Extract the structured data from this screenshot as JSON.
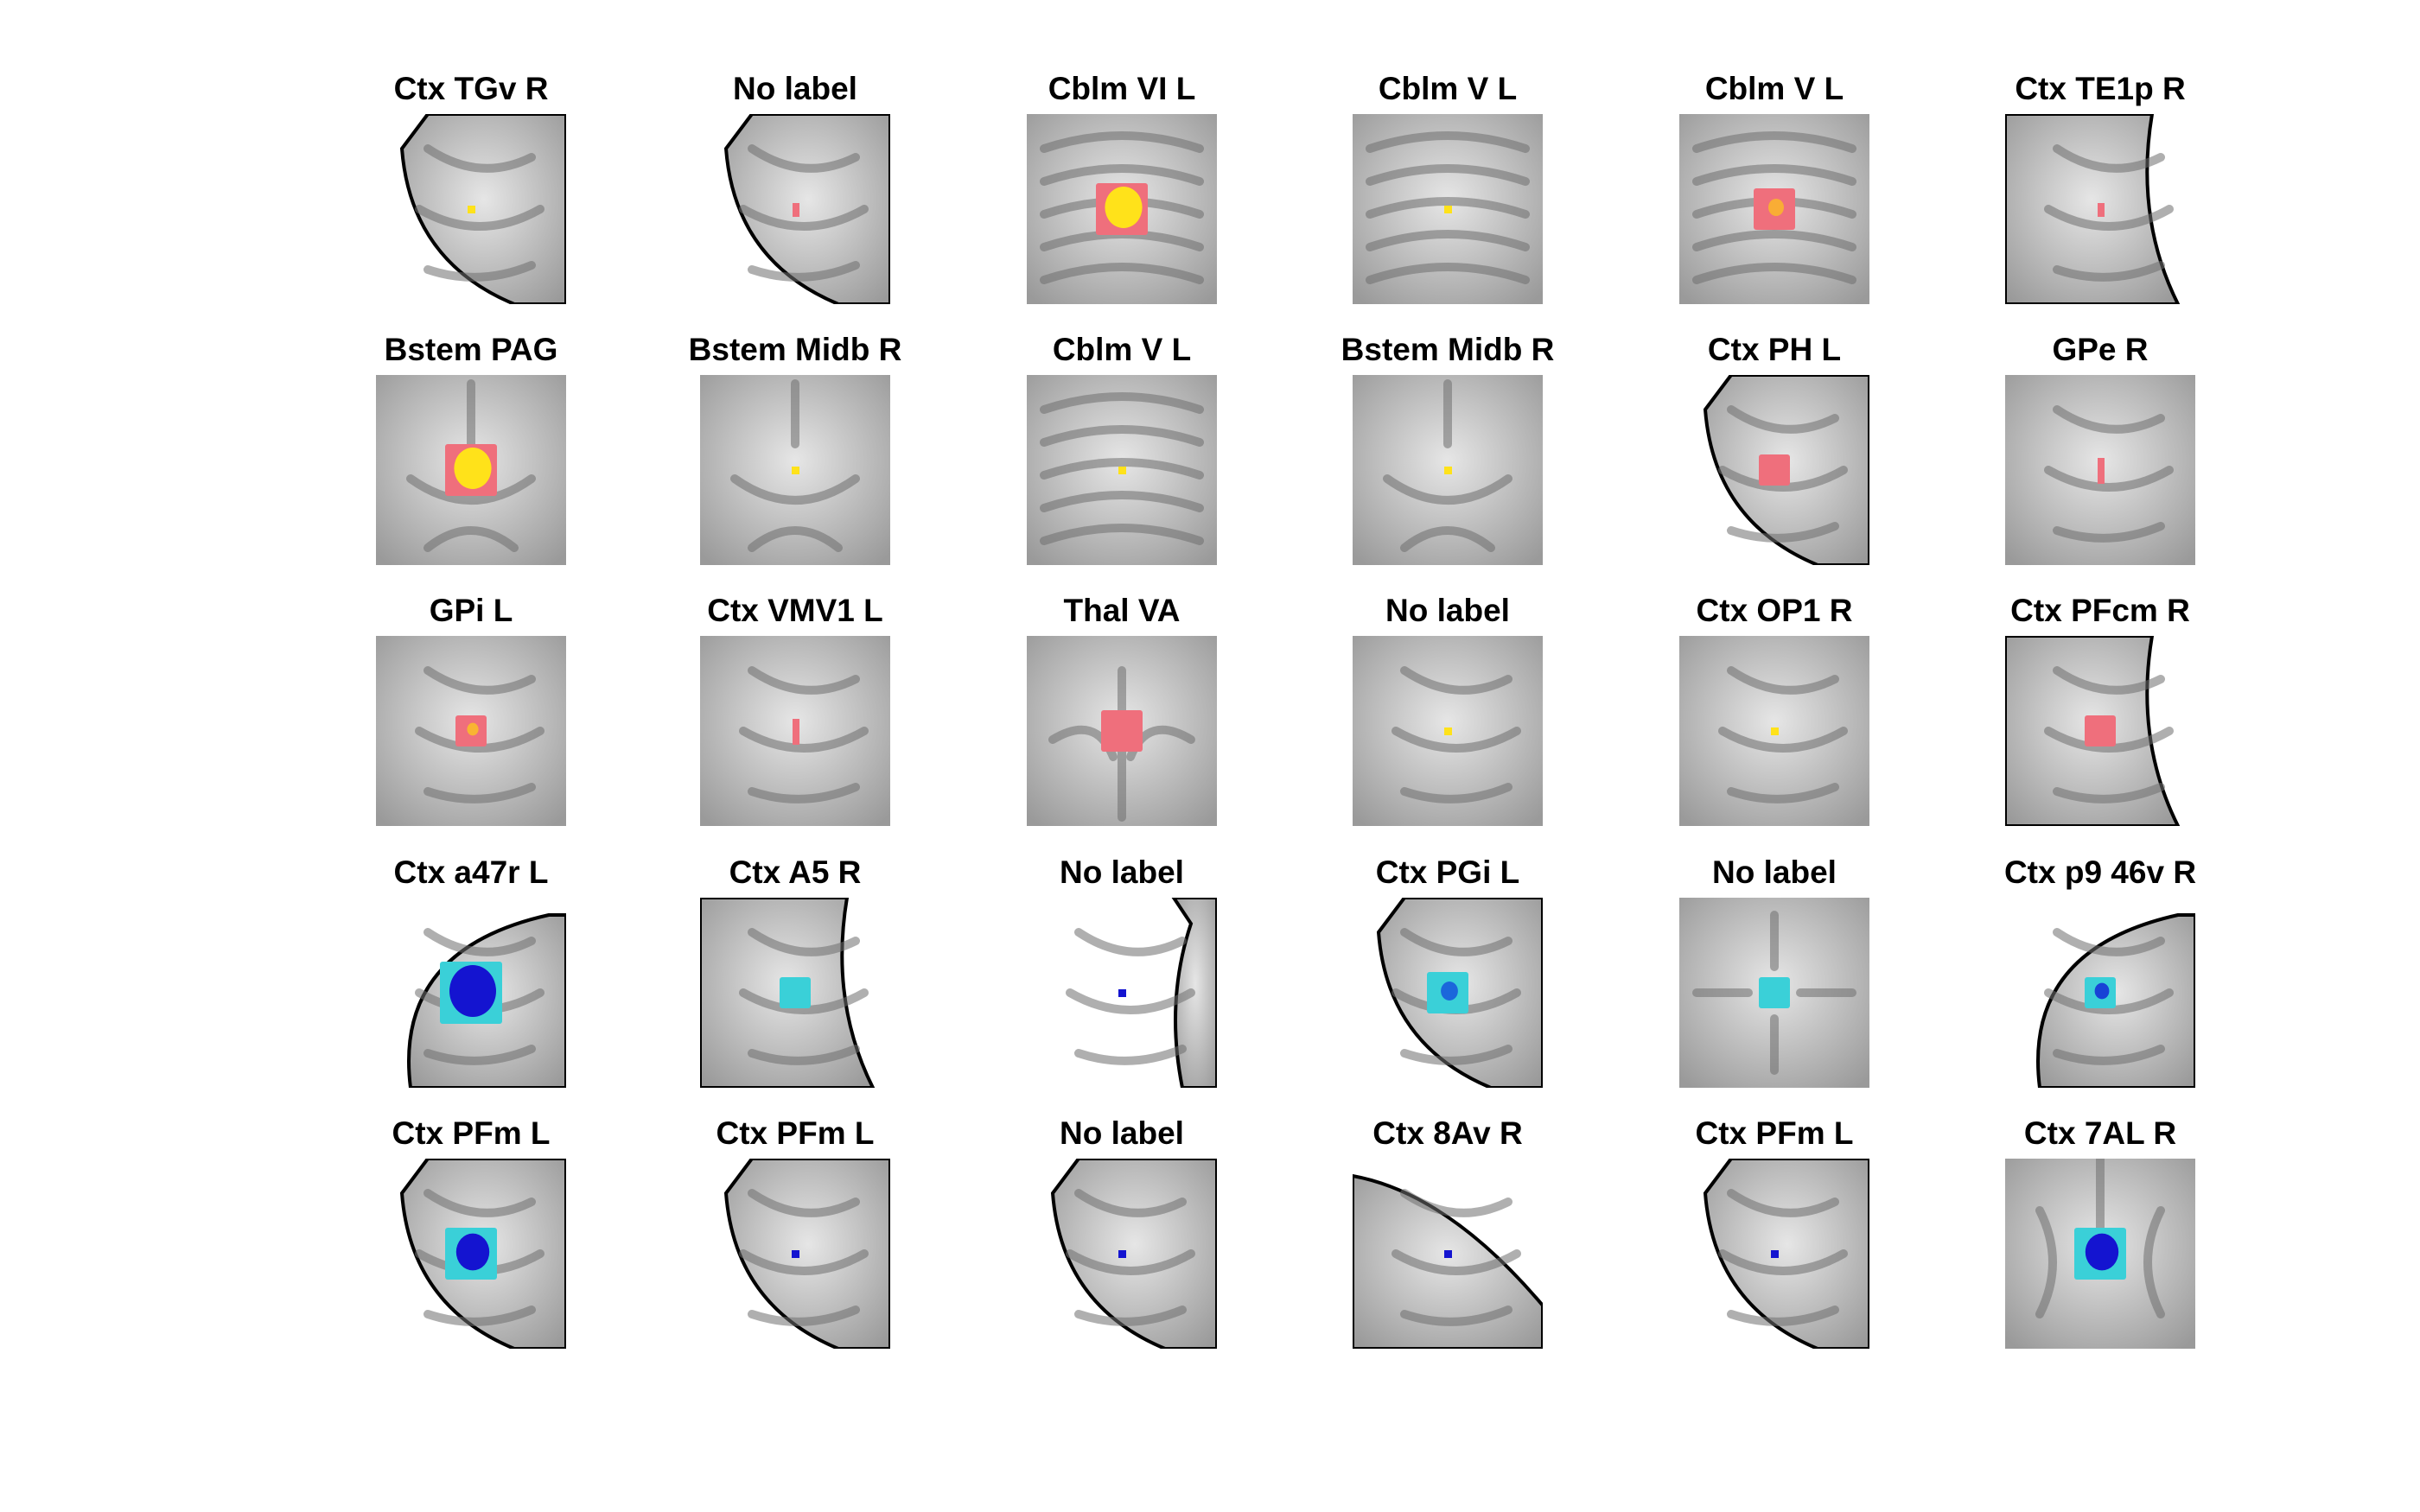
{
  "figure": {
    "rows": 5,
    "cols": 6,
    "colormaps": {
      "positive": [
        "#ef6f7c",
        "#f7a03c",
        "#ffe21a"
      ],
      "negative": [
        "#3ad0d8",
        "#1e8ae0",
        "#1414d0"
      ]
    },
    "panels": [
      {
        "label": "Ctx TGv R",
        "background": "edge-bottom-left",
        "blob": {
          "sign": "pos",
          "size": 1,
          "shape": "dot",
          "intensity": 1.0
        }
      },
      {
        "label": "No label",
        "background": "edge-bottom-left",
        "blob": {
          "sign": "pos",
          "size": 1,
          "shape": "bar",
          "intensity": 0.0
        }
      },
      {
        "label": "Cblm VI L",
        "background": "cerebellum",
        "blob": {
          "sign": "pos",
          "size": 4,
          "shape": "blob",
          "intensity": 1.0
        }
      },
      {
        "label": "Cblm V L",
        "background": "cerebellum",
        "blob": {
          "sign": "pos",
          "size": 1,
          "shape": "dot",
          "intensity": 1.0
        }
      },
      {
        "label": "Cblm V L",
        "background": "cerebellum",
        "blob": {
          "sign": "pos",
          "size": 3,
          "shape": "blob",
          "intensity": 0.2
        }
      },
      {
        "label": "Ctx TE1p R",
        "background": "edge-right",
        "blob": {
          "sign": "pos",
          "size": 1,
          "shape": "bar",
          "intensity": 0.0
        }
      },
      {
        "label": "Bstem PAG",
        "background": "brainstem",
        "blob": {
          "sign": "pos",
          "size": 4,
          "shape": "blob",
          "intensity": 1.0
        }
      },
      {
        "label": "Bstem Midb R",
        "background": "brainstem",
        "blob": {
          "sign": "pos",
          "size": 1,
          "shape": "dot",
          "intensity": 1.0
        }
      },
      {
        "label": "Cblm V L",
        "background": "cerebellum",
        "blob": {
          "sign": "pos",
          "size": 1,
          "shape": "dot",
          "intensity": 1.0
        }
      },
      {
        "label": "Bstem Midb R",
        "background": "brainstem",
        "blob": {
          "sign": "pos",
          "size": 1,
          "shape": "dot",
          "intensity": 1.0
        }
      },
      {
        "label": "Ctx PH L",
        "background": "edge-bottom-left",
        "blob": {
          "sign": "pos",
          "size": 2,
          "shape": "blob",
          "intensity": 0.0
        }
      },
      {
        "label": "GPe R",
        "background": "interior",
        "blob": {
          "sign": "pos",
          "size": 1,
          "shape": "vbar",
          "intensity": 0.0
        }
      },
      {
        "label": "GPi L",
        "background": "interior",
        "blob": {
          "sign": "pos",
          "size": 2,
          "shape": "blob",
          "intensity": 0.3
        }
      },
      {
        "label": "Ctx VMV1 L",
        "background": "interior",
        "blob": {
          "sign": "pos",
          "size": 1,
          "shape": "vbar",
          "intensity": 0.0
        }
      },
      {
        "label": "Thal VA",
        "background": "thalamus",
        "blob": {
          "sign": "pos",
          "size": 3,
          "shape": "blob",
          "intensity": 0.0
        }
      },
      {
        "label": "No label",
        "background": "gyri",
        "blob": {
          "sign": "pos",
          "size": 1,
          "shape": "dot",
          "intensity": 1.0
        }
      },
      {
        "label": "Ctx OP1 R",
        "background": "gyri",
        "blob": {
          "sign": "pos",
          "size": 1,
          "shape": "dot",
          "intensity": 1.0
        }
      },
      {
        "label": "Ctx PFcm R",
        "background": "edge-right",
        "blob": {
          "sign": "pos",
          "size": 2,
          "shape": "blob",
          "intensity": 0.0
        }
      },
      {
        "label": "Ctx a47r L",
        "background": "edge-top-left-round",
        "blob": {
          "sign": "neg",
          "size": 5,
          "shape": "blob",
          "intensity": 1.0
        }
      },
      {
        "label": "Ctx A5 R",
        "background": "edge-right",
        "blob": {
          "sign": "neg",
          "size": 2,
          "shape": "blob",
          "intensity": 0.0
        }
      },
      {
        "label": "No label",
        "background": "edge-right-strip",
        "blob": {
          "sign": "neg",
          "size": 1,
          "shape": "dot",
          "intensity": 1.0
        }
      },
      {
        "label": "Ctx PGi L",
        "background": "edge-bottom-left",
        "blob": {
          "sign": "neg",
          "size": 3,
          "shape": "blob",
          "intensity": 0.3
        }
      },
      {
        "label": "No label",
        "background": "white-matter",
        "blob": {
          "sign": "neg",
          "size": 2,
          "shape": "blob",
          "intensity": 0.0
        }
      },
      {
        "label": "Ctx p9 46v R",
        "background": "edge-top-left-round",
        "blob": {
          "sign": "neg",
          "size": 2,
          "shape": "blob",
          "intensity": 0.6
        }
      },
      {
        "label": "Ctx PFm L",
        "background": "edge-bottom-left",
        "blob": {
          "sign": "neg",
          "size": 4,
          "shape": "blob",
          "intensity": 0.8
        }
      },
      {
        "label": "Ctx PFm L",
        "background": "edge-bottom-left",
        "blob": {
          "sign": "neg",
          "size": 1,
          "shape": "dot",
          "intensity": 1.0
        }
      },
      {
        "label": "No label",
        "background": "edge-bottom-left",
        "blob": {
          "sign": "neg",
          "size": 1,
          "shape": "dot",
          "intensity": 1.0
        }
      },
      {
        "label": "Ctx 8Av R",
        "background": "edge-top",
        "blob": {
          "sign": "neg",
          "size": 1,
          "shape": "dot",
          "intensity": 1.0
        }
      },
      {
        "label": "Ctx PFm L",
        "background": "edge-bottom-left",
        "blob": {
          "sign": "neg",
          "size": 1,
          "shape": "dot",
          "intensity": 1.0
        }
      },
      {
        "label": "Ctx 7AL R",
        "background": "occipital",
        "blob": {
          "sign": "neg",
          "size": 4,
          "shape": "blob",
          "intensity": 0.8
        }
      }
    ]
  }
}
